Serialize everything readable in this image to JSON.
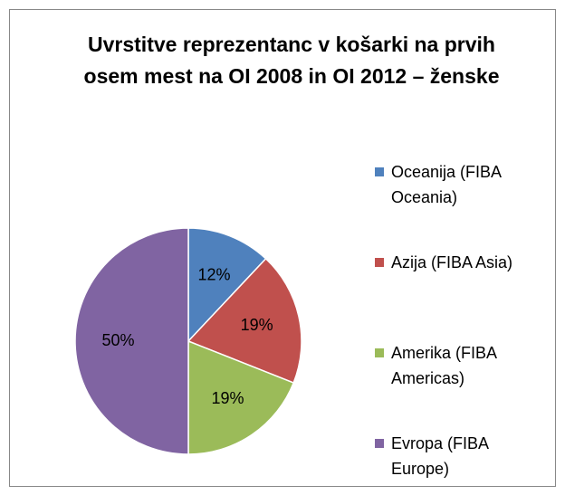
{
  "chart_data": {
    "type": "pie",
    "title": "Uvrstitve reprezentanc v košarki na prvih osem mest na OI 2008 in OI 2012 – ženske",
    "categories": [
      "Oceanija (FIBA Oceania)",
      "Azija (FIBA Asia)",
      "Amerika (FIBA Americas)",
      "Evropa (FIBA Europe)"
    ],
    "values": [
      12,
      19,
      19,
      50
    ],
    "value_labels": [
      "12%",
      "19%",
      "19%",
      "50%"
    ],
    "colors": [
      "#4f81bd",
      "#c0504d",
      "#9bbb59",
      "#8064a2"
    ],
    "legend": "right"
  }
}
